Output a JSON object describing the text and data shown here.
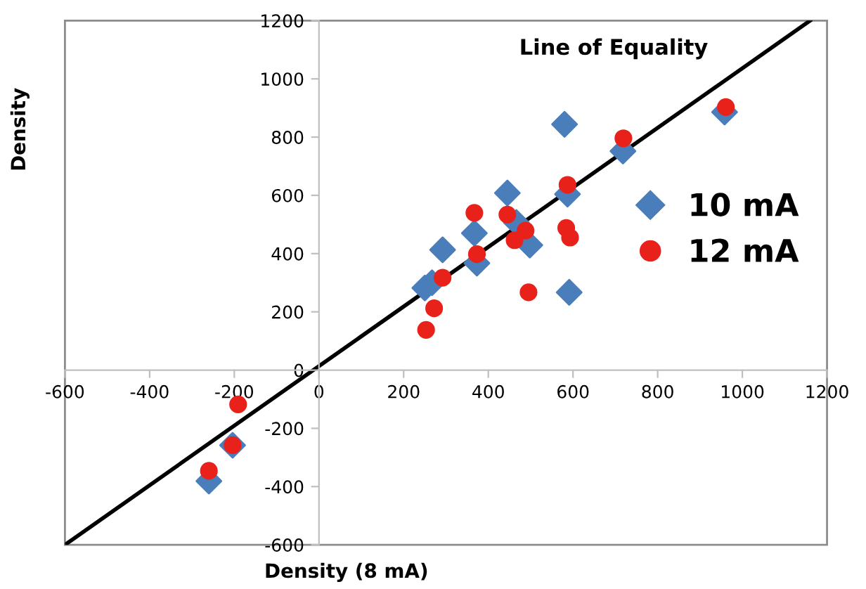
{
  "chart_data": {
    "type": "scatter",
    "xlabel": "Density (8 mA)",
    "ylabel": "Density",
    "annotations": [
      "Line of Equality"
    ],
    "xlim": [
      -600,
      1200
    ],
    "ylim": [
      -600,
      1200
    ],
    "xticks": [
      -600,
      -400,
      -200,
      0,
      200,
      400,
      600,
      800,
      1000,
      1200
    ],
    "yticks": [
      -600,
      -400,
      -200,
      0,
      200,
      400,
      600,
      800,
      1000,
      1200
    ],
    "grid": false,
    "legend": "right",
    "series": [
      {
        "type": "line",
        "color": "#000000",
        "marker": "none",
        "line_style": "solid",
        "x": [
          -600,
          1160
        ],
        "values": [
          -600,
          1200
        ]
      },
      {
        "name": "10 mA",
        "color": "#4a7ebb",
        "marker": "diamond",
        "x": [
          580,
          591,
          718,
          587,
          958,
          445,
          367,
          292,
          373,
          250,
          267,
          466,
          498,
          -260,
          -204
        ],
        "values": [
          844,
          267,
          752,
          604,
          886,
          608,
          470,
          413,
          367,
          282,
          300,
          507,
          429,
          -381,
          -258
        ]
      },
      {
        "name": "12 mA",
        "color": "#e8221b",
        "marker": "circle",
        "x": [
          961,
          719,
          587,
          584,
          593,
          495,
          367,
          445,
          488,
          462,
          373,
          292,
          272,
          253,
          -191,
          -204,
          -260
        ],
        "values": [
          903,
          796,
          636,
          488,
          455,
          267,
          540,
          534,
          479,
          446,
          398,
          317,
          212,
          138,
          -118,
          -258,
          -346
        ]
      }
    ]
  }
}
